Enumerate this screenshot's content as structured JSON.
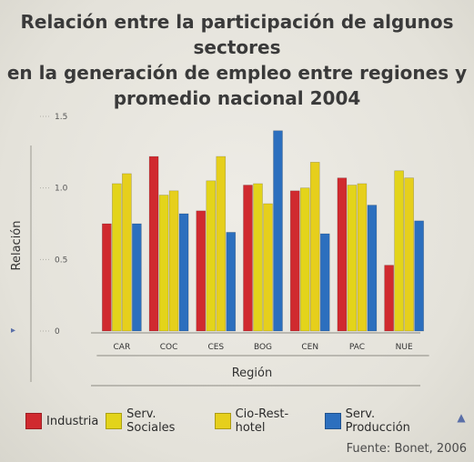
{
  "title": "Relación entre la participación de algunos sectores\nen la generación de empleo entre regiones y\npromedio nacional 2004",
  "source": "Fuente: Bonet, 2006",
  "colors": {
    "Industria": "#d02a2f",
    "Serv. Sociales": "#e3d41a",
    "Cio-Rest-hotel": "#e6cf1c",
    "Serv. Producción": "#2c6fbe"
  },
  "chart_data": {
    "type": "bar",
    "xlabel": "Región",
    "ylabel": "Relación",
    "ylim": [
      0,
      1.5
    ],
    "yticks": [
      "0",
      "0.5",
      "1.0",
      "1.5"
    ],
    "grid": false,
    "legend_position": "bottom",
    "categories": [
      "CAR",
      "COC",
      "CES",
      "BOG",
      "CEN",
      "PAC",
      "NUE"
    ],
    "series": [
      {
        "name": "Industria",
        "values": [
          0.75,
          1.22,
          0.84,
          1.02,
          0.98,
          1.07,
          0.46
        ]
      },
      {
        "name": "Serv. Sociales",
        "values": [
          1.03,
          0.95,
          1.05,
          1.03,
          1.0,
          1.02,
          1.12
        ]
      },
      {
        "name": "Cio-Rest-hotel",
        "values": [
          1.1,
          0.98,
          1.22,
          0.89,
          1.18,
          1.03,
          1.07
        ]
      },
      {
        "name": "Serv. Producción",
        "values": [
          0.75,
          0.82,
          0.69,
          1.4,
          0.68,
          0.88,
          0.77
        ]
      }
    ]
  }
}
